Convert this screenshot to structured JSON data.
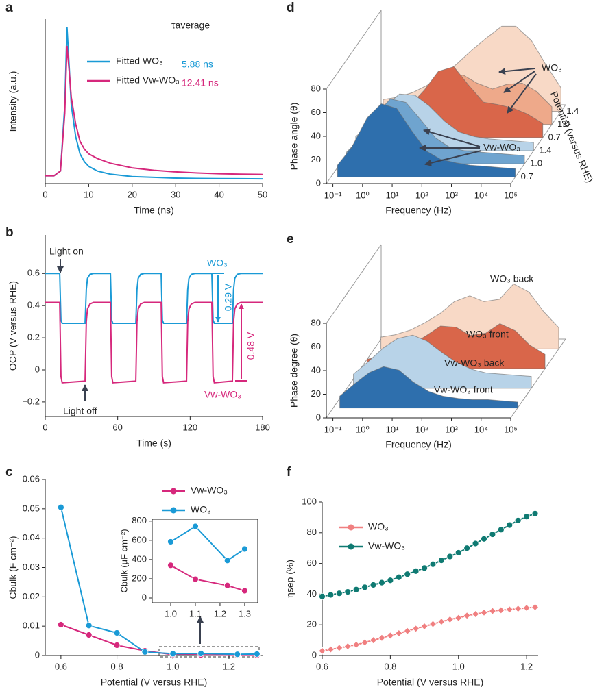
{
  "chart_data": [
    {
      "panel_label": "a",
      "type": "line",
      "x_label": "Time (ns)",
      "y_label": "Intensity (a.u.)",
      "xlim": [
        0,
        50
      ],
      "xticks": [
        0,
        10,
        20,
        30,
        40,
        50
      ],
      "ylim": [
        0,
        1.05
      ],
      "legend": "center",
      "annotations": [
        {
          "text": "τaverage"
        },
        {
          "text": "5.88 ns",
          "color": "#1a9ad6"
        },
        {
          "text": "12.41 ns",
          "color": "#d6287c"
        }
      ],
      "x": [
        0,
        2,
        3.5,
        4.5,
        5,
        5.5,
        6,
        7,
        8,
        9,
        10,
        12,
        15,
        20,
        25,
        30,
        35,
        40,
        45,
        50
      ],
      "series": [
        {
          "name": "Fitted WO₃",
          "color": "#1a9ad6",
          "values": [
            0.05,
            0.05,
            0.08,
            0.5,
            1.0,
            0.75,
            0.5,
            0.3,
            0.19,
            0.14,
            0.11,
            0.08,
            0.06,
            0.045,
            0.04,
            0.035,
            0.033,
            0.032,
            0.031,
            0.03
          ]
        },
        {
          "name": "Fitted Vw-WO₃",
          "color": "#d6287c",
          "values": [
            0.05,
            0.05,
            0.08,
            0.45,
            0.88,
            0.72,
            0.55,
            0.38,
            0.27,
            0.22,
            0.19,
            0.16,
            0.13,
            0.1,
            0.085,
            0.075,
            0.068,
            0.063,
            0.06,
            0.058
          ]
        }
      ]
    },
    {
      "panel_label": "b",
      "type": "line",
      "x_label": "Time (s)",
      "y_label": "OCP (V versus RHE)",
      "xlim": [
        0,
        180
      ],
      "xticks": [
        0,
        60,
        120,
        180
      ],
      "ylim": [
        -0.29,
        0.84
      ],
      "yticks": [
        {
          "value": -0.2,
          "label": "−0.2"
        },
        0,
        0.2,
        0.4,
        0.6
      ],
      "annotations": [
        {
          "text": "Light on"
        },
        {
          "text": "Light off"
        },
        {
          "text": "0.29 V",
          "color": "#1a9ad6"
        },
        {
          "text": "0.48 V",
          "color": "#d6287c"
        }
      ],
      "x": [
        0,
        12,
        13,
        14,
        33,
        34,
        35,
        37,
        40,
        54,
        55,
        56,
        75,
        76,
        77,
        79,
        82,
        96,
        97,
        98,
        117,
        118,
        119,
        121,
        124,
        138,
        139,
        140,
        155,
        156,
        157,
        159,
        162,
        180
      ],
      "series": [
        {
          "name": "WO₃",
          "color": "#1a9ad6",
          "values": [
            0.6,
            0.6,
            0.31,
            0.29,
            0.29,
            0.5,
            0.57,
            0.595,
            0.6,
            0.6,
            0.31,
            0.29,
            0.29,
            0.5,
            0.57,
            0.595,
            0.6,
            0.6,
            0.31,
            0.29,
            0.29,
            0.5,
            0.57,
            0.595,
            0.6,
            0.6,
            0.31,
            0.29,
            0.29,
            0.5,
            0.57,
            0.595,
            0.6,
            0.6
          ]
        },
        {
          "name": "Vw-WO₃",
          "color": "#d6287c",
          "values": [
            0.42,
            0.42,
            -0.04,
            -0.08,
            -0.07,
            0.3,
            0.38,
            0.41,
            0.42,
            0.42,
            -0.04,
            -0.08,
            -0.07,
            0.3,
            0.38,
            0.41,
            0.42,
            0.42,
            -0.04,
            -0.08,
            -0.07,
            0.3,
            0.38,
            0.41,
            0.42,
            0.42,
            -0.04,
            -0.08,
            -0.07,
            0.3,
            0.38,
            0.41,
            0.42,
            0.42
          ]
        }
      ]
    },
    {
      "panel_label": "c",
      "type": "line",
      "x_label": "Potential (V versus RHE)",
      "y_label": "Cbulk (F cm⁻²)",
      "xlim": [
        0.544,
        1.32
      ],
      "xticks": [
        0.6,
        0.8,
        {
          "value": 1,
          "label": "1.0"
        },
        1.2
      ],
      "ylim": [
        0,
        0.06
      ],
      "yticks": [
        0,
        0.01,
        0.02,
        0.03,
        0.04,
        0.05,
        0.06
      ],
      "legend": "upper right",
      "x": [
        0.6,
        0.7,
        0.8,
        0.9,
        1.0,
        1.1,
        1.23,
        1.3
      ],
      "series": [
        {
          "name": "Vw-WO₃",
          "color": "#d6287c",
          "marker": "circle",
          "values": [
            0.0105,
            0.007,
            0.0035,
            0.0016,
            0.0003,
            0.0002,
            0.0001,
            0.0001
          ]
        },
        {
          "name": "WO₃",
          "color": "#1a9ad6",
          "marker": "circle",
          "values": [
            0.0505,
            0.0102,
            0.0077,
            0.0012,
            0.0006,
            0.0007,
            0.0004,
            0.0005
          ]
        }
      ]
    },
    {
      "type": "line",
      "y_label": "Cbulk (µF cm⁻²)",
      "xlim": [
        0.925,
        1.353
      ],
      "xticks": [
        {
          "value": 1,
          "label": "1.0"
        },
        1.1,
        1.2,
        1.3
      ],
      "ylim": [
        -50,
        820
      ],
      "yticks": [
        0,
        200,
        400,
        600,
        800
      ],
      "x": [
        1.0,
        1.1,
        1.23,
        1.3
      ],
      "series": [
        {
          "color": "#d6287c",
          "marker": "circle",
          "values": [
            340,
            195,
            130,
            75
          ]
        },
        {
          "color": "#1a9ad6",
          "marker": "circle",
          "values": [
            585,
            745,
            390,
            510
          ]
        }
      ]
    },
    {
      "panel_label": "d",
      "type": "waterfall",
      "x_label": "Frequency (Hz)",
      "y_label": "Phase angle (θ)",
      "z_label": "Potential (versus RHE)",
      "log_x": true,
      "xlim": [
        0.06,
        100000
      ],
      "xticks": [
        {
          "value": 0.1,
          "label": "10⁻¹"
        },
        {
          "value": 1,
          "label": "10⁰"
        },
        {
          "value": 10,
          "label": "10¹"
        },
        {
          "value": 100,
          "label": "10²"
        },
        {
          "value": 1000,
          "label": "10³"
        },
        {
          "value": 10000,
          "label": "10⁴"
        },
        {
          "value": 100000,
          "label": "10⁵"
        }
      ],
      "ylim": [
        0,
        80
      ],
      "yticks": [
        0,
        20,
        40,
        60,
        80
      ],
      "z_labels": [
        "0.7",
        "1.0",
        "1.4",
        "0.7",
        "1.0",
        "1.4"
      ],
      "annotations": [
        {
          "text": "WO₃"
        },
        {
          "text": "Vw-WO₃"
        }
      ],
      "x": [
        0.1,
        0.3,
        1,
        3,
        10,
        30,
        100,
        300,
        1000,
        3000,
        10000,
        30000,
        100000
      ],
      "series": [
        {
          "color": "#2e6fad",
          "values": [
            10,
            25,
            50,
            62,
            58,
            40,
            22,
            15,
            12,
            10,
            9,
            8,
            7
          ]
        },
        {
          "color": "#6fa4cf",
          "values": [
            10,
            22,
            42,
            55,
            52,
            38,
            22,
            14,
            11,
            10,
            9,
            8,
            7
          ]
        },
        {
          "color": "#b8d3e8",
          "values": [
            12,
            22,
            38,
            48,
            47,
            38,
            25,
            16,
            12,
            10,
            9,
            8,
            7
          ]
        },
        {
          "color": "#d9664a",
          "values": [
            8,
            12,
            18,
            26,
            40,
            56,
            60,
            45,
            30,
            28,
            25,
            20,
            12
          ]
        },
        {
          "color": "#eea98a",
          "values": [
            8,
            10,
            14,
            18,
            26,
            36,
            42,
            35,
            30,
            34,
            35,
            28,
            15
          ]
        },
        {
          "color": "#f8d9c6",
          "values": [
            10,
            12,
            16,
            22,
            30,
            40,
            52,
            62,
            72,
            72,
            60,
            40,
            20
          ]
        }
      ]
    },
    {
      "panel_label": "e",
      "type": "waterfall",
      "x_label": "Frequency (Hz)",
      "y_label": "Phase degree (θ)",
      "log_x": true,
      "xlim": [
        0.06,
        100000
      ],
      "xticks": [
        {
          "value": 0.1,
          "label": "10⁻¹"
        },
        {
          "value": 1,
          "label": "10⁰"
        },
        {
          "value": 10,
          "label": "10¹"
        },
        {
          "value": 100,
          "label": "10²"
        },
        {
          "value": 1000,
          "label": "10³"
        },
        {
          "value": 10000,
          "label": "10⁴"
        },
        {
          "value": 100000,
          "label": "10⁵"
        }
      ],
      "ylim": [
        0,
        80
      ],
      "yticks": [
        0,
        20,
        40,
        60,
        80
      ],
      "x": [
        0.1,
        0.3,
        1,
        3,
        10,
        30,
        100,
        300,
        1000,
        3000,
        10000,
        30000,
        100000
      ],
      "series": [
        {
          "name": "Vw-WO₃ front",
          "color": "#2e6fad",
          "values": [
            10,
            20,
            30,
            35,
            32,
            22,
            14,
            10,
            8,
            7,
            7,
            6,
            5
          ]
        },
        {
          "name": "Vw-WO₃ back",
          "color": "#b8d3e8",
          "values": [
            12,
            22,
            34,
            42,
            45,
            40,
            30,
            22,
            16,
            13,
            12,
            11,
            10
          ]
        },
        {
          "name": "WO₃ front",
          "color": "#d9664a",
          "values": [
            8,
            10,
            15,
            20,
            28,
            36,
            35,
            28,
            30,
            38,
            32,
            20,
            12
          ]
        },
        {
          "name": "WO₃ back",
          "color": "#f8d9c6",
          "values": [
            10,
            12,
            16,
            22,
            30,
            40,
            45,
            40,
            42,
            55,
            48,
            32,
            18
          ]
        }
      ]
    },
    {
      "panel_label": "f",
      "type": "line",
      "x_label": "Potential (V versus RHE)",
      "y_label": "ηsep (%)",
      "xlim": [
        0.6,
        1.234
      ],
      "xticks": [
        0.6,
        0.8,
        {
          "value": 1,
          "label": "1.0"
        },
        1.2
      ],
      "ylim": [
        0,
        100
      ],
      "yticks": [
        0,
        20,
        40,
        60,
        80,
        100
      ],
      "legend": "upper left",
      "x": [
        0.6,
        0.625,
        0.65,
        0.675,
        0.7,
        0.725,
        0.75,
        0.775,
        0.8,
        0.825,
        0.85,
        0.875,
        0.9,
        0.925,
        0.95,
        0.975,
        1.0,
        1.025,
        1.05,
        1.075,
        1.1,
        1.125,
        1.15,
        1.175,
        1.2,
        1.225
      ],
      "series": [
        {
          "name": "WO₃",
          "color": "#f07f80",
          "marker": "diamond",
          "values": [
            3,
            4,
            5,
            6,
            7,
            8.5,
            10,
            11.5,
            13,
            14.5,
            16,
            17.5,
            19,
            20.5,
            22,
            23.5,
            24.5,
            26,
            27,
            28,
            29,
            29.5,
            30,
            30.5,
            31,
            31.5
          ]
        },
        {
          "name": "Vw-WO₃",
          "color": "#0f7a72",
          "marker": "circle",
          "values": [
            38.5,
            39.5,
            40.5,
            41.5,
            43,
            44.5,
            46,
            47.5,
            49,
            51,
            53,
            55,
            57,
            59.5,
            62,
            64.5,
            67,
            70,
            73,
            76,
            79,
            82,
            85,
            88,
            90.5,
            92.5
          ]
        }
      ]
    }
  ]
}
